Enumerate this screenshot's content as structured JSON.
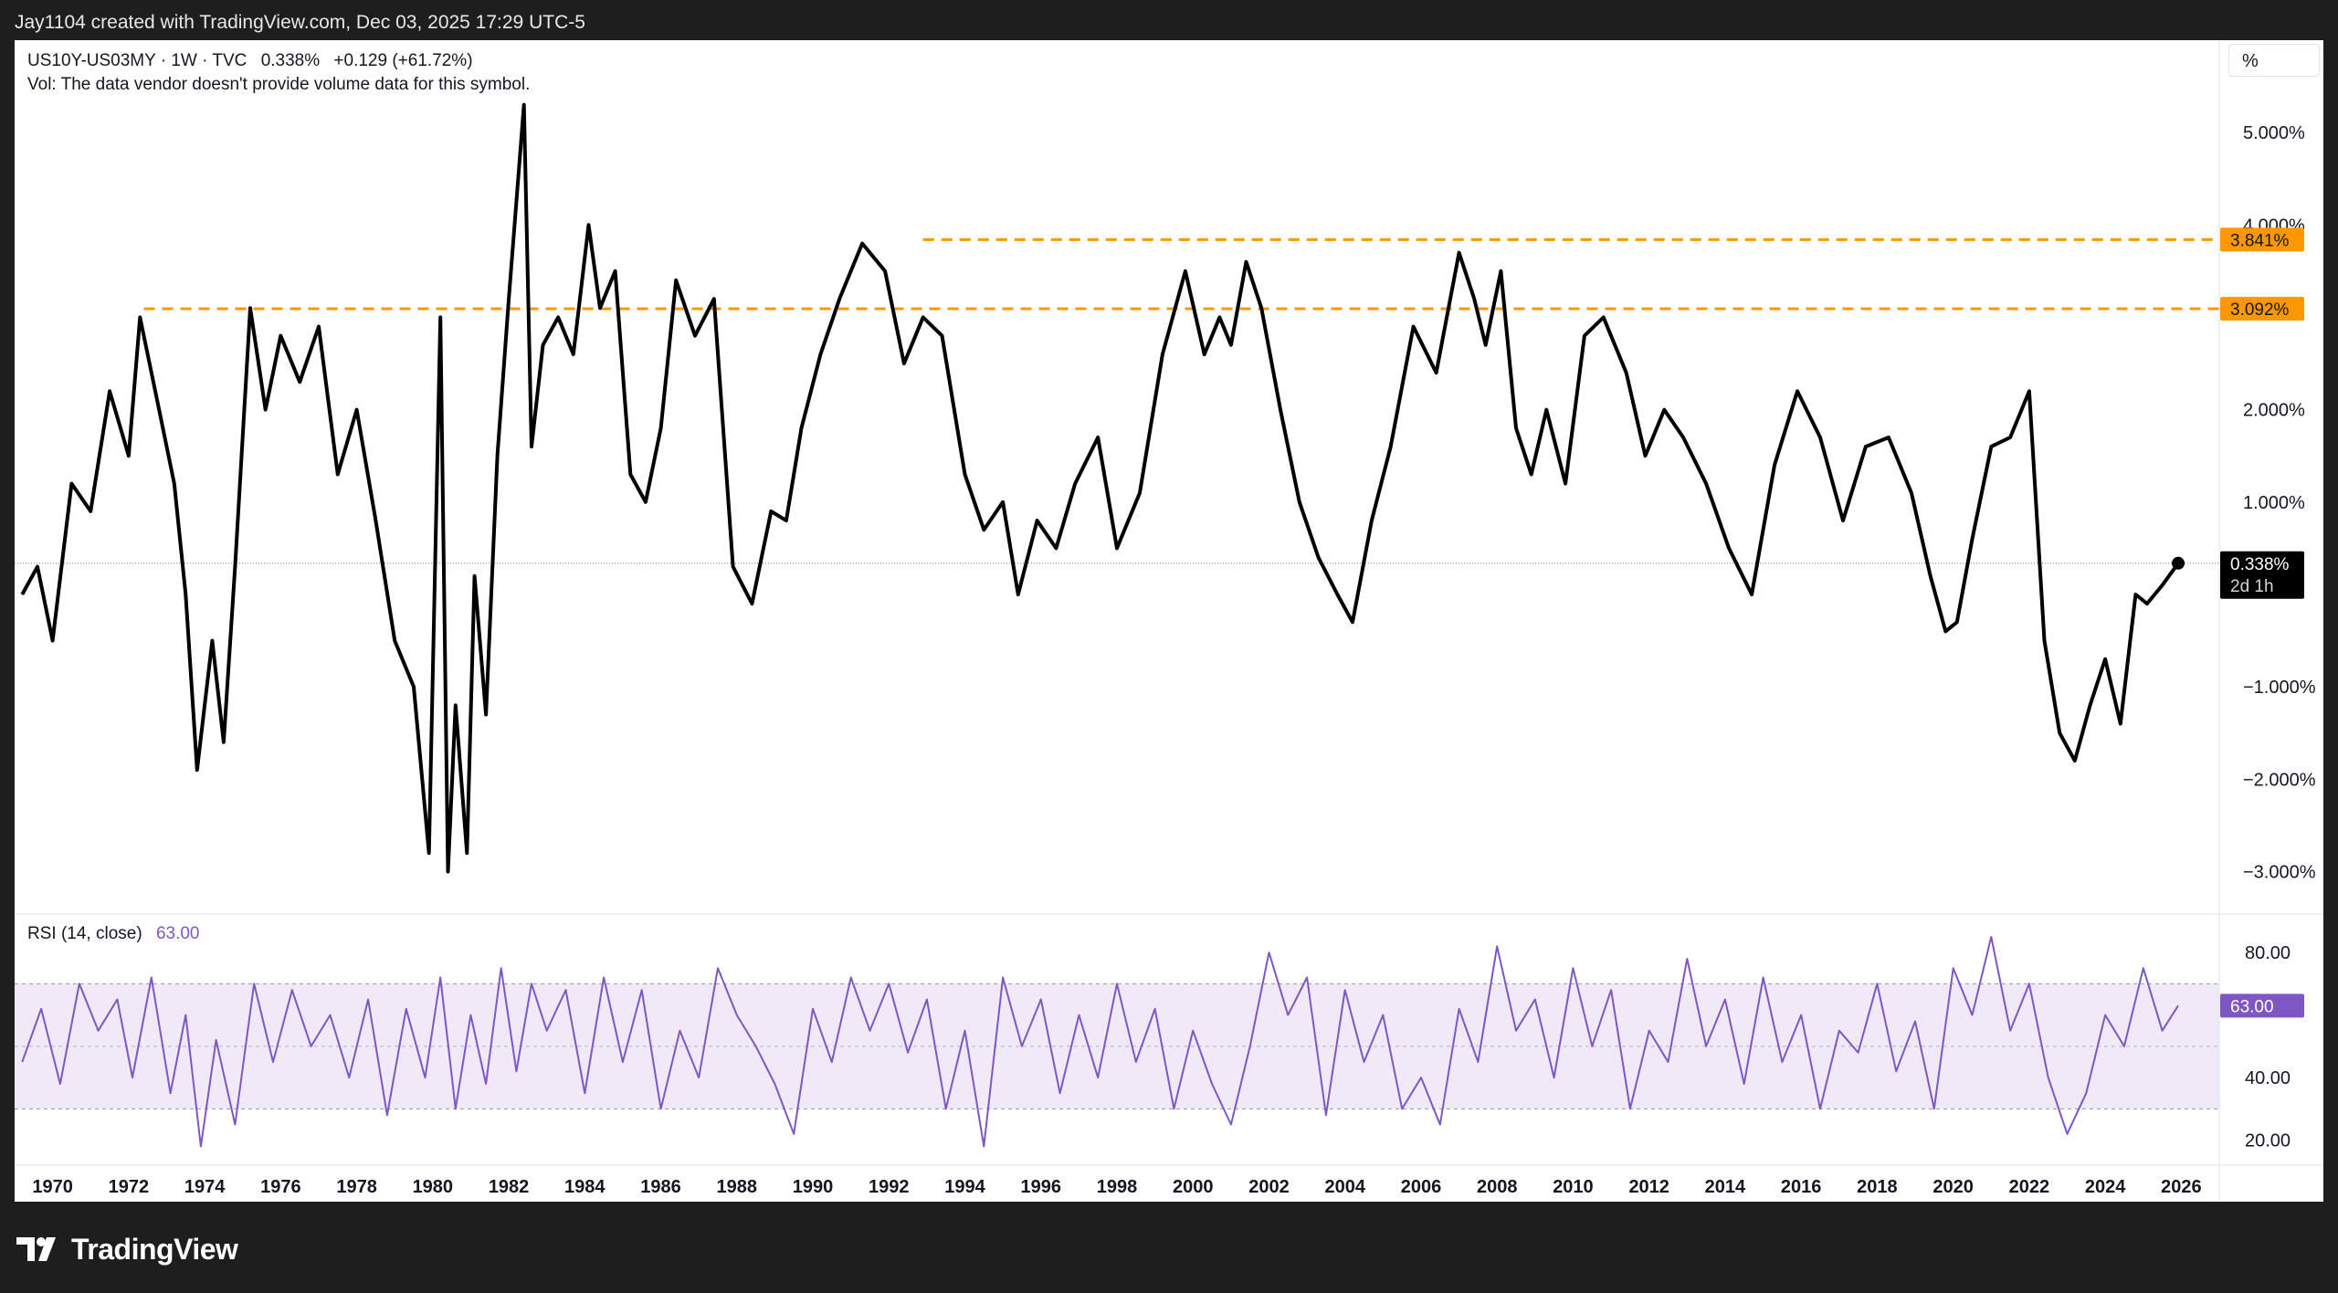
{
  "header": {
    "attribution": "Jay1104 created with TradingView.com, Dec 03, 2025 17:29 UTC-5"
  },
  "legend": {
    "symbol": "US10Y-US03MY · 1W · TVC",
    "last": "0.338%",
    "change": "+0.129 (+61.72%)",
    "volume_note": "Vol: The data vendor doesn't provide volume data for this symbol."
  },
  "rsi_legend": {
    "label": "RSI (14, close)",
    "value": "63.00"
  },
  "scale_unit": "%",
  "badges": {
    "last_price": "0.338%",
    "countdown": "2d 1h",
    "level_high": "3.841%",
    "level_low": "3.092%",
    "rsi_last": "63.00"
  },
  "colors": {
    "price_line": "#000000",
    "level_lines": "#ff9800",
    "rsi_line": "#7e57c2",
    "rsi_band": "#efe9f8",
    "frame_bg": "#1e1e1e"
  },
  "brand": "TradingView",
  "chart_data": [
    {
      "type": "line",
      "series": [
        {
          "name": "US10Y-US03MY",
          "x": [
            1969.2,
            1969.6,
            1970.0,
            1970.5,
            1971.0,
            1971.5,
            1972.0,
            1972.3,
            1972.8,
            1973.2,
            1973.5,
            1973.8,
            1974.2,
            1974.5,
            1974.8,
            1975.2,
            1975.6,
            1976.0,
            1976.5,
            1977.0,
            1977.5,
            1978.0,
            1978.5,
            1979.0,
            1979.5,
            1979.9,
            1980.2,
            1980.4,
            1980.6,
            1980.9,
            1981.1,
            1981.4,
            1981.7,
            1982.0,
            1982.4,
            1982.6,
            1982.9,
            1983.3,
            1983.7,
            1984.1,
            1984.4,
            1984.8,
            1985.2,
            1985.6,
            1986.0,
            1986.4,
            1986.9,
            1987.4,
            1987.9,
            1988.4,
            1988.9,
            1989.3,
            1989.7,
            1990.2,
            1990.7,
            1991.3,
            1991.9,
            1992.4,
            1992.9,
            1993.4,
            1994.0,
            1994.5,
            1995.0,
            1995.4,
            1995.9,
            1996.4,
            1996.9,
            1997.5,
            1998.0,
            1998.6,
            1999.2,
            1999.8,
            2000.3,
            2000.7,
            2001.0,
            2001.4,
            2001.8,
            2002.3,
            2002.8,
            2003.3,
            2003.8,
            2004.2,
            2004.7,
            2005.2,
            2005.8,
            2006.4,
            2007.0,
            2007.4,
            2007.7,
            2008.1,
            2008.5,
            2008.9,
            2009.3,
            2009.8,
            2010.3,
            2010.8,
            2011.4,
            2011.9,
            2012.4,
            2012.9,
            2013.5,
            2014.1,
            2014.7,
            2015.3,
            2015.9,
            2016.5,
            2017.1,
            2017.7,
            2018.3,
            2018.9,
            2019.4,
            2019.8,
            2020.1,
            2020.5,
            2021.0,
            2021.5,
            2022.0,
            2022.4,
            2022.8,
            2023.2,
            2023.6,
            2024.0,
            2024.4,
            2024.8,
            2025.1,
            2025.5,
            2025.92
          ],
          "y": [
            0.0,
            0.3,
            -0.5,
            1.2,
            0.9,
            2.2,
            1.5,
            3.0,
            2.0,
            1.2,
            0.0,
            -1.9,
            -0.5,
            -1.6,
            0.3,
            3.1,
            2.0,
            2.8,
            2.3,
            2.9,
            1.3,
            2.0,
            0.8,
            -0.5,
            -1.0,
            -2.8,
            3.0,
            -3.0,
            -1.2,
            -2.8,
            0.2,
            -1.3,
            1.5,
            3.2,
            5.3,
            1.6,
            2.7,
            3.0,
            2.6,
            4.0,
            3.1,
            3.5,
            1.3,
            1.0,
            1.8,
            3.4,
            2.8,
            3.2,
            0.3,
            -0.1,
            0.9,
            0.8,
            1.8,
            2.6,
            3.2,
            3.8,
            3.5,
            2.5,
            3.0,
            2.8,
            1.3,
            0.7,
            1.0,
            0.0,
            0.8,
            0.5,
            1.2,
            1.7,
            0.5,
            1.1,
            2.6,
            3.5,
            2.6,
            3.0,
            2.7,
            3.6,
            3.1,
            2.0,
            1.0,
            0.4,
            0.0,
            -0.3,
            0.8,
            1.6,
            2.9,
            2.4,
            3.7,
            3.2,
            2.7,
            3.5,
            1.8,
            1.3,
            2.0,
            1.2,
            2.8,
            3.0,
            2.4,
            1.5,
            2.0,
            1.7,
            1.2,
            0.5,
            0.0,
            1.4,
            2.2,
            1.7,
            0.8,
            1.6,
            1.7,
            1.1,
            0.2,
            -0.4,
            -0.3,
            0.6,
            1.6,
            1.7,
            2.2,
            -0.5,
            -1.5,
            -1.8,
            -1.2,
            -0.7,
            -1.4,
            0.0,
            -0.1,
            0.1,
            0.338
          ]
        }
      ],
      "levels": [
        {
          "value": 3.841,
          "from_x": 1992.9,
          "label": "3.841%"
        },
        {
          "value": 3.092,
          "from_x": 1972.4,
          "label": "3.092%"
        }
      ],
      "yticks": [
        -3,
        -2,
        -1,
        1,
        2,
        4,
        5
      ],
      "ytick_labels": [
        "−3.000%",
        "−2.000%",
        "−1.000%",
        "1.000%",
        "2.000%",
        "4.000%",
        "5.000%"
      ],
      "xticks": [
        1970,
        1972,
        1974,
        1976,
        1978,
        1980,
        1982,
        1984,
        1986,
        1988,
        1990,
        1992,
        1994,
        1996,
        1998,
        2000,
        2002,
        2004,
        2006,
        2008,
        2010,
        2012,
        2014,
        2016,
        2018,
        2020,
        2022,
        2024,
        2026
      ],
      "xtick_labels": [
        "1970",
        "1972",
        "1974",
        "1976",
        "1978",
        "1980",
        "1982",
        "1984",
        "1986",
        "1988",
        "1990",
        "1992",
        "1994",
        "1996",
        "1998",
        "2000",
        "2002",
        "2004",
        "2006",
        "2008",
        "2010",
        "2012",
        "2014",
        "2016",
        "2018",
        "2020",
        "2022",
        "2024",
        "2026"
      ],
      "xlim": [
        1969.0,
        2027.0
      ],
      "ylim": [
        -3.45,
        6.0
      ],
      "grid": false
    },
    {
      "type": "line",
      "series": [
        {
          "name": "RSI (14, close)",
          "x": [
            1969.2,
            1969.7,
            1970.2,
            1970.7,
            1971.2,
            1971.7,
            1972.1,
            1972.6,
            1973.1,
            1973.5,
            1973.9,
            1974.3,
            1974.8,
            1975.3,
            1975.8,
            1976.3,
            1976.8,
            1977.3,
            1977.8,
            1978.3,
            1978.8,
            1979.3,
            1979.8,
            1980.2,
            1980.6,
            1981.0,
            1981.4,
            1981.8,
            1982.2,
            1982.6,
            1983.0,
            1983.5,
            1984.0,
            1984.5,
            1985.0,
            1985.5,
            1986.0,
            1986.5,
            1987.0,
            1987.5,
            1988.0,
            1988.5,
            1989.0,
            1989.5,
            1990.0,
            1990.5,
            1991.0,
            1991.5,
            1992.0,
            1992.5,
            1993.0,
            1993.5,
            1994.0,
            1994.5,
            1995.0,
            1995.5,
            1996.0,
            1996.5,
            1997.0,
            1997.5,
            1998.0,
            1998.5,
            1999.0,
            1999.5,
            2000.0,
            2000.5,
            2001.0,
            2001.5,
            2002.0,
            2002.5,
            2003.0,
            2003.5,
            2004.0,
            2004.5,
            2005.0,
            2005.5,
            2006.0,
            2006.5,
            2007.0,
            2007.5,
            2008.0,
            2008.5,
            2009.0,
            2009.5,
            2010.0,
            2010.5,
            2011.0,
            2011.5,
            2012.0,
            2012.5,
            2013.0,
            2013.5,
            2014.0,
            2014.5,
            2015.0,
            2015.5,
            2016.0,
            2016.5,
            2017.0,
            2017.5,
            2018.0,
            2018.5,
            2019.0,
            2019.5,
            2020.0,
            2020.5,
            2021.0,
            2021.5,
            2022.0,
            2022.5,
            2023.0,
            2023.5,
            2024.0,
            2024.5,
            2025.0,
            2025.5,
            2025.92
          ],
          "y": [
            45,
            62,
            38,
            70,
            55,
            65,
            40,
            72,
            35,
            60,
            18,
            52,
            25,
            70,
            45,
            68,
            50,
            60,
            40,
            65,
            28,
            62,
            40,
            72,
            30,
            60,
            38,
            75,
            42,
            70,
            55,
            68,
            35,
            72,
            45,
            68,
            30,
            55,
            40,
            75,
            60,
            50,
            38,
            22,
            62,
            45,
            72,
            55,
            70,
            48,
            65,
            30,
            55,
            18,
            72,
            50,
            65,
            35,
            60,
            40,
            70,
            45,
            62,
            30,
            55,
            38,
            25,
            50,
            80,
            60,
            72,
            28,
            68,
            45,
            60,
            30,
            40,
            25,
            62,
            45,
            82,
            55,
            65,
            40,
            75,
            50,
            68,
            30,
            55,
            45,
            78,
            50,
            65,
            38,
            72,
            45,
            60,
            30,
            55,
            48,
            70,
            42,
            58,
            30,
            75,
            60,
            85,
            55,
            70,
            40,
            22,
            35,
            60,
            50,
            75,
            55,
            63
          ],
          "band": [
            30,
            70
          ]
        }
      ],
      "yticks": [
        20,
        40,
        80
      ],
      "ytick_labels": [
        "20.00",
        "40.00",
        "80.00"
      ],
      "ylim": [
        12,
        92
      ],
      "grid": false
    }
  ]
}
